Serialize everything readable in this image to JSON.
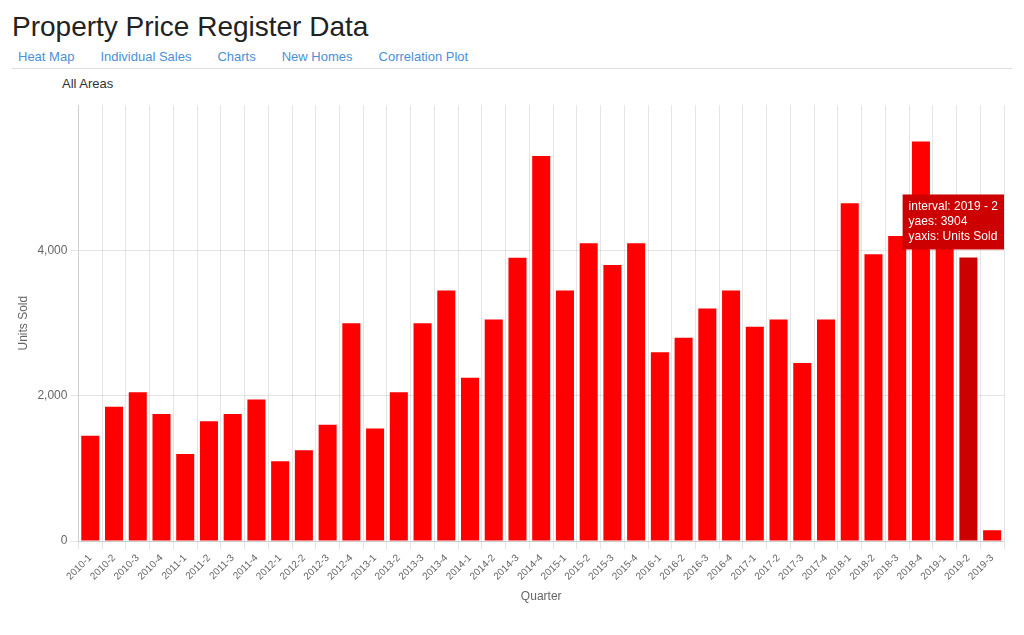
{
  "chart_data": {
    "type": "bar",
    "title": "Property Price Register Data",
    "subtitle": "All Areas",
    "nav_items": [
      "Heat Map",
      "Individual Sales",
      "Charts",
      "New Homes",
      "Correlation Plot"
    ],
    "xlabel": "Quarter",
    "ylabel": "Units Sold",
    "categories": [
      "2010-1",
      "2010-2",
      "2010-3",
      "2010-4",
      "2011-1",
      "2011-2",
      "2011-3",
      "2011-4",
      "2012-1",
      "2012-2",
      "2012-3",
      "2012-4",
      "2013-1",
      "2013-2",
      "2013-3",
      "2013-4",
      "2014-1",
      "2014-2",
      "2014-3",
      "2014-4",
      "2015-1",
      "2015-2",
      "2015-3",
      "2015-4",
      "2016-1",
      "2016-2",
      "2016-3",
      "2016-4",
      "2017-1",
      "2017-2",
      "2017-3",
      "2017-4",
      "2018-1",
      "2018-2",
      "2018-3",
      "2018-4",
      "2019-1",
      "2019-2",
      "2019-3"
    ],
    "values": [
      1450,
      1850,
      2050,
      1750,
      1200,
      1650,
      1750,
      1950,
      1100,
      1250,
      1600,
      3000,
      1550,
      2050,
      3000,
      3450,
      2250,
      3050,
      3900,
      5300,
      3450,
      4100,
      3800,
      4100,
      2600,
      2800,
      3200,
      3450,
      2950,
      3050,
      2450,
      3050,
      4650,
      3950,
      4200,
      5500,
      4300,
      3904,
      150
    ],
    "colors": [
      "#ff0000",
      "#ff0000",
      "#ff0000",
      "#ff0000",
      "#ff0000",
      "#ff0000",
      "#ff0000",
      "#ff0000",
      "#ff0000",
      "#ff0000",
      "#ff0000",
      "#ff0000",
      "#ff0000",
      "#ff0000",
      "#ff0000",
      "#ff0000",
      "#ff0000",
      "#ff0000",
      "#ff0000",
      "#ff0000",
      "#ff0000",
      "#ff0000",
      "#ff0000",
      "#ff0000",
      "#ff0000",
      "#ff0000",
      "#ff0000",
      "#ff0000",
      "#ff0000",
      "#ff0000",
      "#ff0000",
      "#ff0000",
      "#ff0000",
      "#ff0000",
      "#ff0000",
      "#ff0000",
      "#ff0000",
      "#cc0000",
      "#ff0000"
    ],
    "ylim": [
      0,
      6000
    ],
    "yticks": [
      0,
      {
        "value": 2000,
        "label": "2,000"
      },
      {
        "value": 4000,
        "label": "4,000"
      }
    ],
    "grid": true,
    "annotations": [
      {
        "text": "interval: 2019 - 2\nyaes: 3904\nyaxis: Units Sold",
        "category": "2019-2"
      }
    ]
  }
}
